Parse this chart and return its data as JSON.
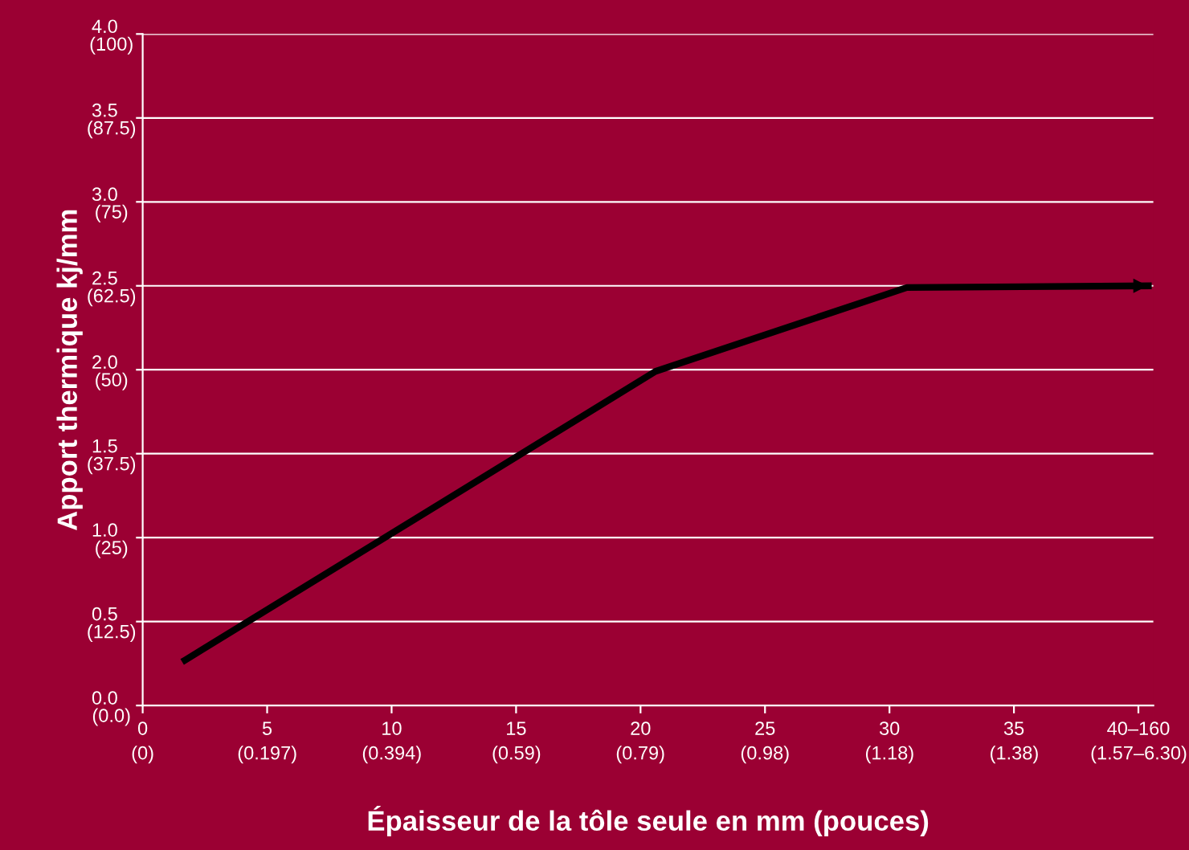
{
  "chart_data": {
    "type": "line",
    "xlabel": "Épaisseur de la tôle seule en mm (pouces)",
    "ylabel": "Apport thermique kj/mm",
    "series": [
      {
        "color": "#000000",
        "x": [
          1.7,
          20.6,
          30.7,
          40.4
        ],
        "values": [
          0.27,
          1.99,
          2.49,
          2.5
        ]
      }
    ],
    "xlim": [
      0,
      40.6
    ],
    "ylim": [
      0,
      4.0
    ],
    "xticks": [
      0,
      5,
      10,
      15,
      20,
      25,
      30,
      35,
      {
        "value": 40,
        "label": "40–160"
      }
    ],
    "x2lim": [
      0,
      1.598
    ],
    "x2ticks": [
      {
        "value": 0,
        "label": "(0)"
      },
      {
        "value": 0.197,
        "label": "(0.197)"
      },
      {
        "value": 0.394,
        "label": "(0.394)"
      },
      {
        "value": 0.591,
        "label": "(0.59)"
      },
      {
        "value": 0.787,
        "label": "(0.79)"
      },
      {
        "value": 0.984,
        "label": "(0.98)"
      },
      {
        "value": 1.181,
        "label": "(1.18)"
      },
      {
        "value": 1.378,
        "label": "(1.38)"
      },
      {
        "value": 1.575,
        "label": "(1.57–6.30)"
      }
    ],
    "yticks": [
      {
        "value": 0,
        "label": "0.0"
      },
      0.5,
      {
        "value": 1.0,
        "label": "1.0"
      },
      1.5,
      {
        "value": 2.0,
        "label": "2.0"
      },
      2.5,
      {
        "value": 3.0,
        "label": "3.0"
      },
      3.5,
      {
        "value": 4.0,
        "label": "4.0"
      }
    ],
    "y2lim": [
      0,
      100
    ],
    "y2ticks": [
      {
        "value": 0,
        "label": "(0.0)"
      },
      {
        "value": 12.5,
        "label": "(12.5)"
      },
      {
        "value": 25,
        "label": "(25)"
      },
      {
        "value": 37.5,
        "label": "(37.5)"
      },
      {
        "value": 50,
        "label": "(50)"
      },
      {
        "value": 62.5,
        "label": "(62.5)"
      },
      {
        "value": 75,
        "label": "(75)"
      },
      {
        "value": 87.5,
        "label": "(87.5)"
      },
      {
        "value": 100,
        "label": "(100)"
      }
    ],
    "grid": "y",
    "line_style": "solid",
    "marker": "none"
  }
}
